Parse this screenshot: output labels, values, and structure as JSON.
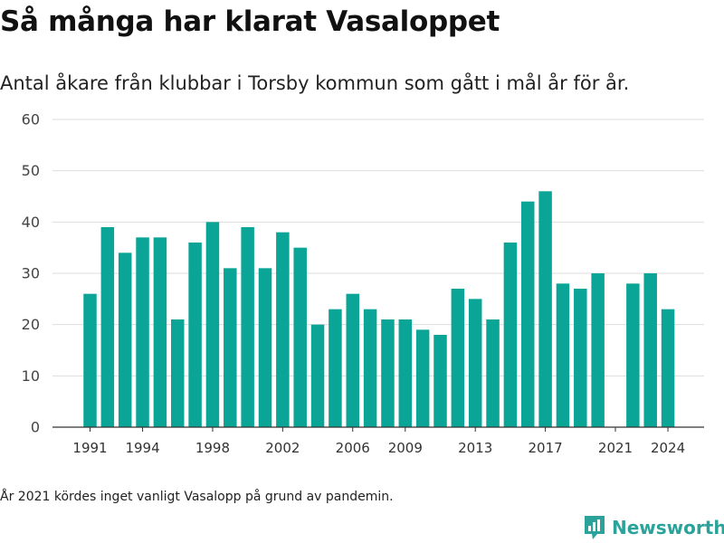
{
  "title": "Så många har klarat Vasaloppet",
  "subtitle": "Antal åkare från klubbar i Torsby kommun som gått i mål år för år.",
  "footnote": "År 2021 kördes inget vanligt Vasalopp på grund av pandemin.",
  "brand": {
    "name": "Newsworthy",
    "icon": "newsworthy-logo-icon",
    "color": "#2ba39a"
  },
  "chart_data": {
    "type": "bar",
    "title": "Så många har klarat Vasaloppet",
    "subtitle": "Antal åkare från klubbar i Torsby kommun som gått i mål år för år.",
    "xlabel": "",
    "ylabel": "",
    "x": [
      1991,
      1992,
      1993,
      1994,
      1995,
      1996,
      1997,
      1998,
      1999,
      2000,
      2001,
      2002,
      2003,
      2004,
      2005,
      2006,
      2007,
      2008,
      2009,
      2010,
      2011,
      2012,
      2013,
      2014,
      2015,
      2016,
      2017,
      2018,
      2019,
      2020,
      2021,
      2022,
      2023,
      2024
    ],
    "values": [
      26,
      39,
      34,
      37,
      37,
      21,
      36,
      40,
      31,
      39,
      31,
      38,
      35,
      20,
      23,
      26,
      23,
      21,
      21,
      19,
      18,
      27,
      25,
      21,
      36,
      44,
      46,
      28,
      27,
      30,
      null,
      28,
      30,
      23
    ],
    "xticks": [
      1991,
      1994,
      1998,
      2002,
      2006,
      2009,
      2013,
      2017,
      2021,
      2024
    ],
    "yticks": [
      0,
      10,
      20,
      30,
      40,
      50,
      60
    ],
    "ylim": [
      0,
      60
    ],
    "grid": true,
    "bar_color": "#0aa596"
  }
}
